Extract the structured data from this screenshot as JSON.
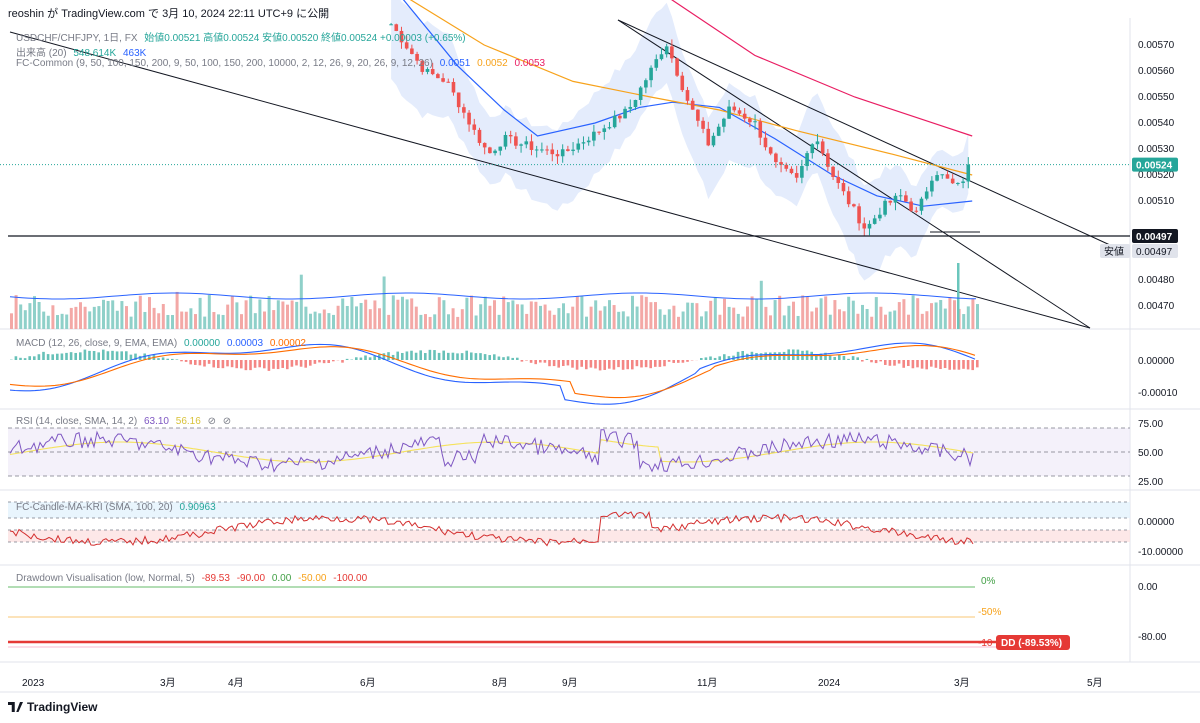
{
  "header": {
    "caption": "reoshin が TradingView.com で 3月 10, 2024 22:11 UTC+9 に公開"
  },
  "legends": {
    "main": {
      "symbol": "USDCHF/CHFJPY, 1日, FX",
      "ohlc": "始値0.00521  高値0.00524  安値0.00520  終値0.00524  +0.00003 (+0.65%)",
      "volume_label": "出来高 (20)",
      "volume_values": [
        "548.614K",
        "463K"
      ],
      "fc_label": "FC-Common (9, 50, 100, 150, 200, 9, 50, 100, 150, 200, 10000, 2, 12, 26, 9, 20, 26, 9, 12, 26)",
      "fc_values": [
        "0.0051",
        "0.0052",
        "0.0053"
      ]
    },
    "macd": {
      "label": "MACD (12, 26, close, 9, EMA, EMA)",
      "values": [
        "0.00000",
        "0.00003",
        "0.00002"
      ]
    },
    "rsi": {
      "label": "RSI (14, close, SMA, 14, 2)",
      "values": [
        "63.10",
        "56.16",
        "⊘",
        "⊘"
      ]
    },
    "candle_ma": {
      "label": "FC-Candle-MA-KRI (SMA, 100, 20)",
      "values": [
        "0.90963"
      ]
    },
    "drawdown": {
      "label": "Drawdown Visualisation (low, Normal, 5)",
      "values": [
        "-89.53",
        "-90.00",
        "0.00",
        "-50.00",
        "-100.00"
      ]
    }
  },
  "colors": {
    "up": "#26a69a",
    "down": "#ef5350",
    "ma_blue": "#2962ff",
    "ma_orange": "#f7a21b",
    "ma_red": "#e91e63",
    "cloud": "#dbe6fb",
    "current_price": "#26a69a",
    "low_tag": "#131722",
    "macd_line": "#2962ff",
    "signal_line": "#ff6d00",
    "rsi_line": "#7e57c2",
    "rsi_ma": "#f5e25c",
    "kri_line": "#d32f2f",
    "drawdown": "#e53935"
  },
  "price_axis": {
    "ticks": [
      "0.00570",
      "0.00560",
      "0.00550",
      "0.00540",
      "0.00530",
      "0.00520",
      "0.00510",
      "0.00480",
      "0.00470"
    ],
    "current_price": "0.00524",
    "low_line_price": "0.00497",
    "low_tag_label": "安値",
    "low_tag_value": "0.00497"
  },
  "pane_axes": {
    "macd": [
      "0.00000",
      "-0.00010"
    ],
    "rsi": [
      "75.00",
      "50.00",
      "25.00"
    ],
    "candle_ma": [
      "0.00000",
      "-10.00000"
    ],
    "drawdown": [
      "0.00",
      "-80.00"
    ]
  },
  "drawdown_marks": {
    "zero": "0%",
    "half": "-50%",
    "full": "-10",
    "dd_badge": "DD (-89.53%)"
  },
  "time_axis": [
    "2023",
    "3月",
    "4月",
    "6月",
    "8月",
    "9月",
    "11月",
    "2024",
    "3月",
    "5月"
  ],
  "footer": {
    "brand": "TradingView"
  },
  "chart_data": {
    "type": "candlestick",
    "title": "USDCHF/CHFJPY, 1日, FX",
    "ylim": [
      0.00465,
      0.00578
    ],
    "x_range": [
      "2023-01",
      "2024-05"
    ],
    "series": [
      {
        "name": "USDCHF/CHFJPY",
        "waypoints": [
          [
            "2023-06-20",
            0.00578
          ],
          [
            "2023-07-05",
            0.0056
          ],
          [
            "2023-07-15",
            0.00556
          ],
          [
            "2023-07-28",
            0.00536
          ],
          [
            "2023-08-03",
            0.00528
          ],
          [
            "2023-08-10",
            0.00534
          ],
          [
            "2023-08-25",
            0.0053
          ],
          [
            "2023-09-05",
            0.00528
          ],
          [
            "2023-09-20",
            0.00536
          ],
          [
            "2023-10-05",
            0.00545
          ],
          [
            "2023-10-15",
            0.0056
          ],
          [
            "2023-10-22",
            0.00571
          ],
          [
            "2023-11-01",
            0.00548
          ],
          [
            "2023-11-10",
            0.00532
          ],
          [
            "2023-11-20",
            0.00546
          ],
          [
            "2023-12-01",
            0.0054
          ],
          [
            "2023-12-10",
            0.00524
          ],
          [
            "2023-12-20",
            0.00518
          ],
          [
            "2023-12-28",
            0.00536
          ],
          [
            "2024-01-05",
            0.0052
          ],
          [
            "2024-01-12",
            0.0051
          ],
          [
            "2024-01-20",
            0.00499
          ],
          [
            "2024-01-28",
            0.00508
          ],
          [
            "2024-02-05",
            0.00512
          ],
          [
            "2024-02-12",
            0.00505
          ],
          [
            "2024-02-20",
            0.00522
          ],
          [
            "2024-03-01",
            0.00515
          ],
          [
            "2024-03-06",
            0.00521
          ],
          [
            "2024-03-08",
            0.00524
          ]
        ]
      },
      {
        "name": "0.0051",
        "values_at": {
          "2023-08-01": 0.00555,
          "2023-10-01": 0.00533,
          "2023-12-01": 0.00545,
          "2024-02-15": 0.00508,
          "2024-03-08": 0.0051
        }
      },
      {
        "name": "0.0052",
        "values_at": {
          "2023-07-01": 0.0057,
          "2023-10-01": 0.00552,
          "2023-12-15": 0.00538,
          "2024-03-08": 0.0052
        }
      },
      {
        "name": "0.0053",
        "values_at": {
          "2023-10-20": 0.00585,
          "2024-03-08": 0.00535
        }
      }
    ]
  }
}
